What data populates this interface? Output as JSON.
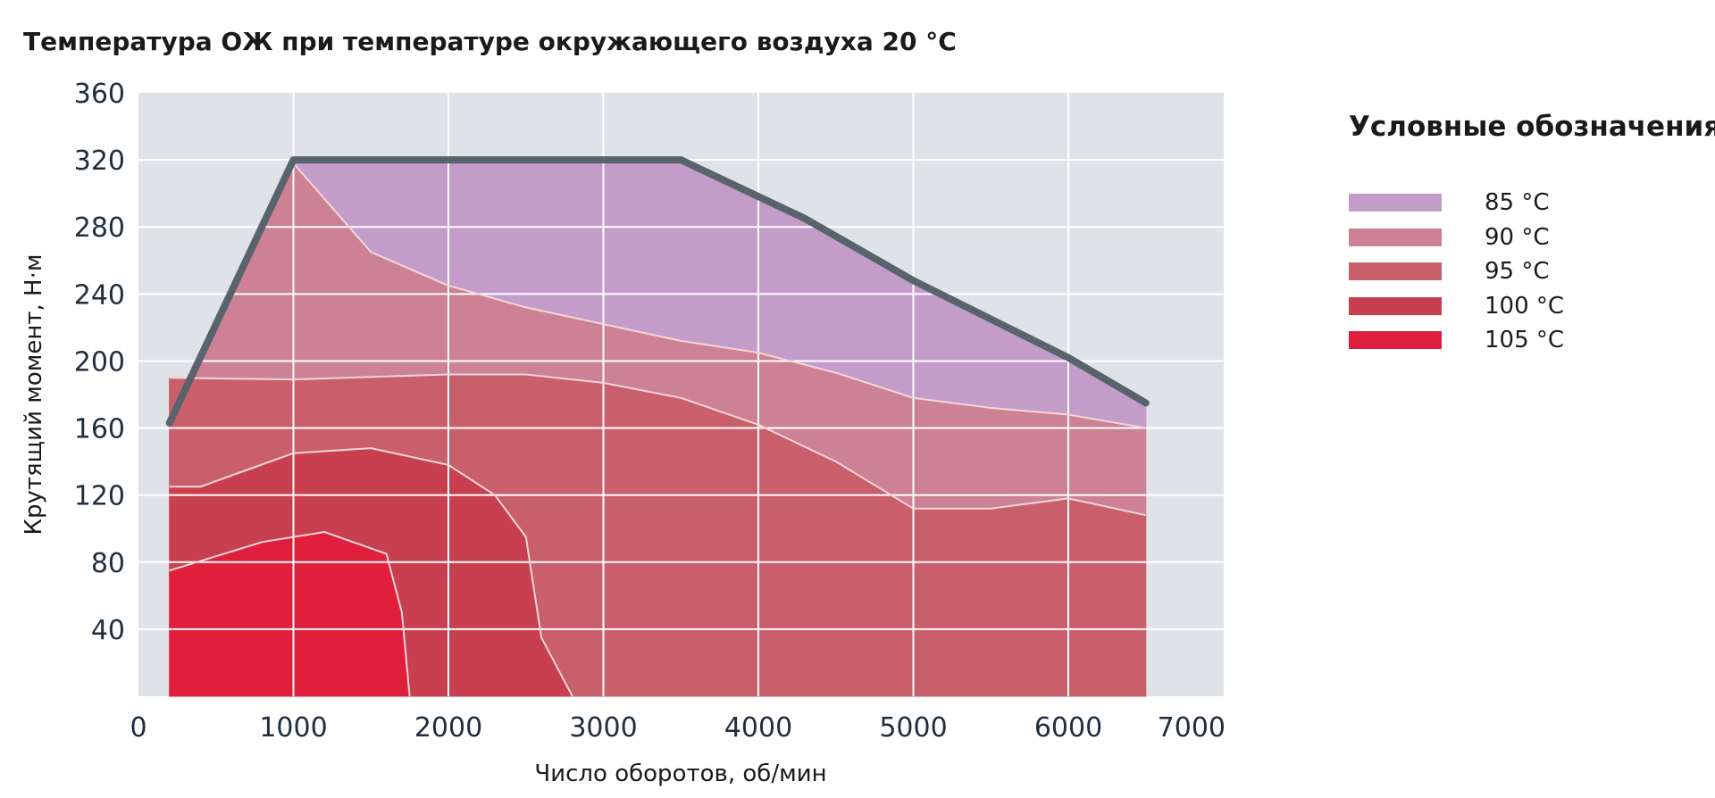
{
  "chart_data": {
    "type": "area",
    "title": "Температура ОЖ при температуре окружающего воздуха 20 °C",
    "xlabel": "Число оборотов, об/мин",
    "ylabel": "Крутящий момент, Н·м",
    "xlim": [
      0,
      7000
    ],
    "ylim": [
      0,
      360
    ],
    "x_ticks": [
      "0",
      "1000",
      "2000",
      "3000",
      "4000",
      "5000",
      "6000",
      "7000"
    ],
    "y_ticks": [
      "40",
      "80",
      "120",
      "160",
      "200",
      "240",
      "280",
      "320",
      "360"
    ],
    "grid": true,
    "legend_title": "Условные обозначения:",
    "legend_position": "right",
    "colors": {
      "background": "#dfe3e7",
      "grid": "#ffffff",
      "outline": "#58636b",
      "contour": "#f4d6d6"
    },
    "series": [
      {
        "name": "85 °C",
        "color": "#c49cca",
        "boundary": [
          [
            200,
            163
          ],
          [
            1000,
            320
          ],
          [
            3500,
            320
          ],
          [
            4300,
            285
          ],
          [
            5000,
            248
          ],
          [
            6000,
            202
          ],
          [
            6500,
            175
          ],
          [
            6500,
            160
          ],
          [
            6000,
            168
          ],
          [
            5500,
            172
          ],
          [
            5000,
            178
          ],
          [
            4500,
            193
          ],
          [
            4000,
            205
          ],
          [
            3500,
            212
          ],
          [
            3000,
            222
          ],
          [
            2500,
            232
          ],
          [
            2000,
            245
          ],
          [
            1500,
            265
          ],
          [
            1000,
            318
          ],
          [
            200,
            163
          ]
        ]
      },
      {
        "name": "90 °C",
        "color": "#cc8194",
        "boundary": [
          [
            200,
            160
          ],
          [
            200,
            190
          ],
          [
            1000,
            189
          ],
          [
            2000,
            192
          ],
          [
            2500,
            192
          ],
          [
            3000,
            187
          ],
          [
            3500,
            178
          ],
          [
            4000,
            162
          ],
          [
            4500,
            140
          ],
          [
            5000,
            112
          ],
          [
            5500,
            112
          ],
          [
            6000,
            118
          ],
          [
            6500,
            108
          ],
          [
            6500,
            160
          ],
          [
            6000,
            168
          ],
          [
            5500,
            172
          ],
          [
            5000,
            178
          ],
          [
            4500,
            193
          ],
          [
            4000,
            205
          ],
          [
            3500,
            212
          ],
          [
            3000,
            222
          ],
          [
            2500,
            232
          ],
          [
            2000,
            245
          ],
          [
            1500,
            265
          ],
          [
            1000,
            318
          ],
          [
            200,
            163
          ]
        ]
      },
      {
        "name": "95 °C",
        "color": "#ca5f6c",
        "boundary": [
          [
            200,
            190
          ],
          [
            1000,
            189
          ],
          [
            2000,
            192
          ],
          [
            2500,
            192
          ],
          [
            3000,
            187
          ],
          [
            3500,
            178
          ],
          [
            4000,
            162
          ],
          [
            4500,
            140
          ],
          [
            5000,
            112
          ],
          [
            5500,
            112
          ],
          [
            6000,
            118
          ],
          [
            6500,
            108
          ],
          [
            6500,
            0
          ],
          [
            2800,
            0
          ],
          [
            2600,
            35
          ],
          [
            2500,
            95
          ],
          [
            2300,
            120
          ],
          [
            2000,
            138
          ],
          [
            1500,
            148
          ],
          [
            1000,
            145
          ],
          [
            700,
            135
          ],
          [
            400,
            125
          ],
          [
            200,
            125
          ]
        ]
      },
      {
        "name": "100 °C",
        "color": "#c8404f",
        "boundary": [
          [
            200,
            125
          ],
          [
            400,
            125
          ],
          [
            700,
            135
          ],
          [
            1000,
            145
          ],
          [
            1500,
            148
          ],
          [
            2000,
            138
          ],
          [
            2300,
            120
          ],
          [
            2500,
            95
          ],
          [
            2600,
            35
          ],
          [
            2800,
            0
          ],
          [
            1750,
            0
          ],
          [
            1700,
            50
          ],
          [
            1600,
            85
          ],
          [
            1200,
            98
          ],
          [
            800,
            92
          ],
          [
            200,
            75
          ]
        ]
      },
      {
        "name": "105 °C",
        "color": "#e01f3c",
        "boundary": [
          [
            200,
            75
          ],
          [
            800,
            92
          ],
          [
            1200,
            98
          ],
          [
            1600,
            85
          ],
          [
            1700,
            50
          ],
          [
            1750,
            0
          ],
          [
            200,
            0
          ]
        ]
      }
    ],
    "boundary_curve": [
      [
        200,
        163
      ],
      [
        1000,
        320
      ],
      [
        3500,
        320
      ],
      [
        4300,
        285
      ],
      [
        5000,
        248
      ],
      [
        6000,
        202
      ],
      [
        6500,
        175
      ]
    ]
  }
}
